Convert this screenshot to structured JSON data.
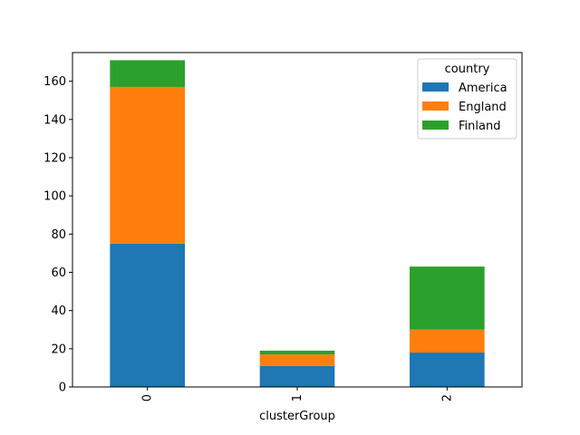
{
  "chart_data": {
    "type": "bar",
    "stacked": true,
    "title": "",
    "xlabel": "clusterGroup",
    "ylabel": "",
    "categories": [
      "0",
      "1",
      "2"
    ],
    "series": [
      {
        "name": "America",
        "color": "#1f77b4",
        "values": [
          75,
          11,
          18
        ]
      },
      {
        "name": "England",
        "color": "#ff7f0e",
        "values": [
          82,
          6,
          12
        ]
      },
      {
        "name": "Finland",
        "color": "#2ca02c",
        "values": [
          14,
          2,
          33
        ]
      }
    ],
    "ylim": [
      0,
      175
    ],
    "yticks": [
      0,
      20,
      40,
      60,
      80,
      100,
      120,
      140,
      160
    ],
    "legend": {
      "title": "country",
      "placement": "top-right"
    }
  }
}
